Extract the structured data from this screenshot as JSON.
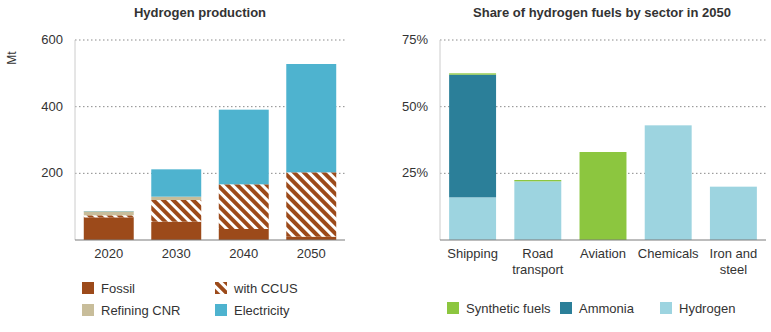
{
  "chart_data": [
    {
      "type": "bar",
      "stacked": true,
      "title": "Hydrogen production",
      "y_label": "Mt",
      "categories": [
        "2020",
        "2030",
        "2040",
        "2050"
      ],
      "series": [
        {
          "name": "Fossil",
          "color": "#9c4a1a",
          "values": [
            68,
            55,
            33,
            10
          ]
        },
        {
          "name": "with CCUS",
          "color": "#9c4a1a",
          "values": [
            6,
            65,
            134,
            193
          ]
        },
        {
          "name": "Refining CNR",
          "color": "#c8bd9a",
          "values": [
            12,
            10,
            0,
            0
          ]
        },
        {
          "name": "Electricity",
          "color": "#4eb3cf",
          "values": [
            1,
            82,
            224,
            325
          ]
        }
      ],
      "ylim": [
        0,
        600
      ],
      "yticks": [
        200,
        400,
        600
      ],
      "grid": true,
      "legend": "bottom"
    },
    {
      "type": "bar",
      "stacked": true,
      "title": "Share of hydrogen fuels by sector in 2050",
      "categories": [
        "Shipping",
        "Road transport",
        "Aviation",
        "Chemicals",
        "Iron and steel"
      ],
      "series": [
        {
          "name": "Hydrogen",
          "color": "#9dd4e0",
          "values": [
            16,
            22,
            0,
            43,
            20
          ]
        },
        {
          "name": "Ammonia",
          "color": "#2b7f99",
          "values": [
            46,
            0,
            0,
            0,
            0
          ]
        },
        {
          "name": "Synthetic fuels",
          "color": "#8cc63f",
          "values": [
            0.5,
            0.5,
            33,
            0,
            0
          ]
        }
      ],
      "ylim": [
        0,
        75
      ],
      "yticks": [
        {
          "value": 25,
          "label": "25%"
        },
        {
          "value": 50,
          "label": "50%"
        },
        {
          "value": 75,
          "label": "75%"
        }
      ],
      "grid": true,
      "legend": "bottom"
    }
  ]
}
